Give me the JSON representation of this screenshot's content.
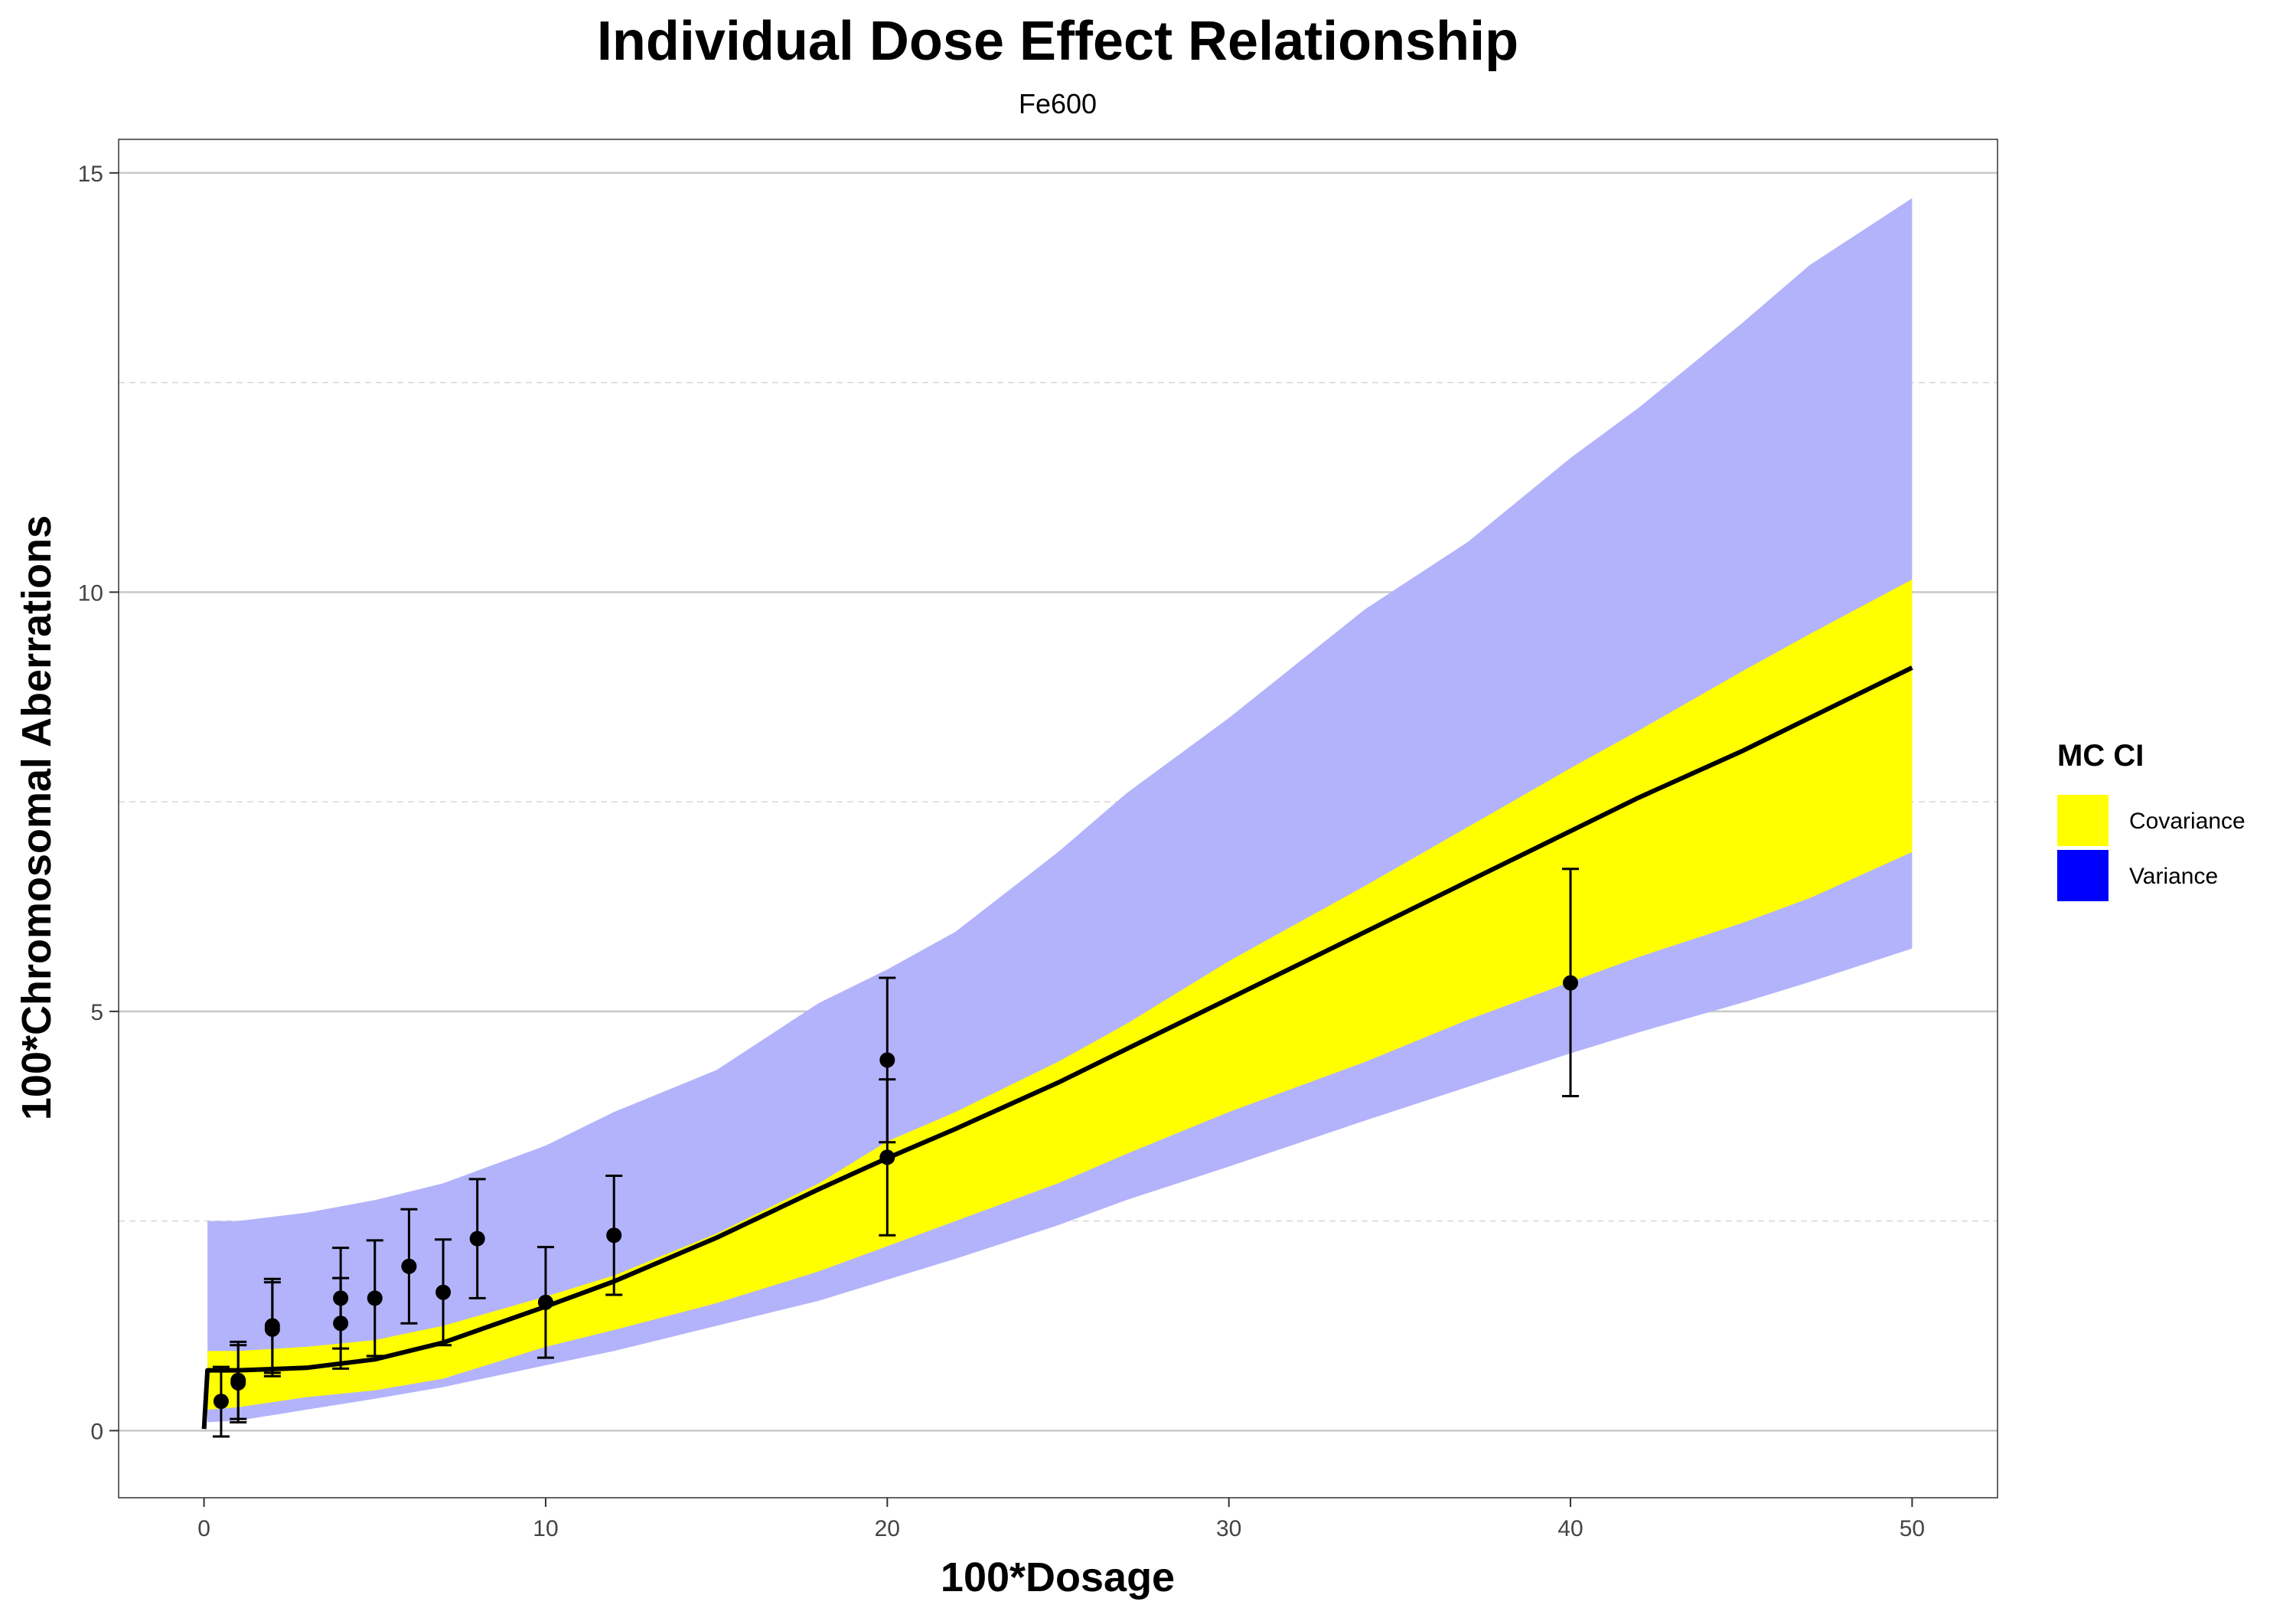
{
  "chart_data": {
    "type": "line",
    "title": "Individual Dose Effect Relationship",
    "subtitle": "Fe600",
    "xlabel": "100*Dosage",
    "ylabel": "100*Chromosomal Aberrations",
    "xlim": [
      -2.5,
      52.5
    ],
    "ylim": [
      -0.8,
      15.4
    ],
    "x_ticks": [
      0,
      10,
      20,
      30,
      40,
      50
    ],
    "y_ticks": [
      0,
      5,
      10,
      15
    ],
    "y_minor_gridlines": [
      2.5,
      7.5,
      12.5
    ],
    "x_tick_labels": [
      "0",
      "10",
      "20",
      "30",
      "40",
      "50"
    ],
    "y_tick_labels": [
      "0",
      "5",
      "10",
      "15"
    ],
    "grid": true,
    "legend": {
      "title": "MC CI",
      "position": "right",
      "items": [
        {
          "label": "Covariance",
          "color": "#ffff00"
        },
        {
          "label": "Variance",
          "color": "#0000ff"
        }
      ]
    },
    "colors": {
      "variance_fill": "#b3b3fb",
      "covariance_fill": "#ffff00",
      "fit_line": "#000000",
      "points": "#000000"
    },
    "series": [
      {
        "name": "Variance band",
        "type": "area",
        "x": [
          0.1,
          1,
          3,
          5,
          7,
          10,
          12,
          15,
          18,
          20,
          22,
          25,
          27,
          30,
          34,
          37,
          40,
          42,
          45,
          47,
          50
        ],
        "lower": [
          0.1,
          0.12,
          0.25,
          0.38,
          0.52,
          0.78,
          0.95,
          1.25,
          1.55,
          1.8,
          2.05,
          2.45,
          2.75,
          3.15,
          3.7,
          4.1,
          4.5,
          4.75,
          5.1,
          5.35,
          5.75
        ],
        "upper": [
          2.5,
          2.5,
          2.6,
          2.75,
          2.95,
          3.4,
          3.8,
          4.3,
          5.1,
          5.5,
          5.95,
          6.9,
          7.6,
          8.5,
          9.8,
          10.6,
          11.6,
          12.2,
          13.2,
          13.9,
          14.7
        ]
      },
      {
        "name": "Covariance band",
        "type": "area",
        "x": [
          0.1,
          1,
          3,
          5,
          7,
          10,
          12,
          15,
          18,
          20,
          22,
          25,
          27,
          30,
          34,
          37,
          40,
          42,
          45,
          47,
          50
        ],
        "lower": [
          0.25,
          0.28,
          0.4,
          0.48,
          0.62,
          1.0,
          1.2,
          1.52,
          1.9,
          2.2,
          2.5,
          2.95,
          3.3,
          3.8,
          4.4,
          4.9,
          5.35,
          5.65,
          6.05,
          6.35,
          6.9
        ],
        "upper": [
          0.95,
          0.95,
          1.0,
          1.08,
          1.25,
          1.6,
          1.85,
          2.35,
          2.95,
          3.45,
          3.8,
          4.4,
          4.85,
          5.6,
          6.5,
          7.2,
          7.9,
          8.35,
          9.05,
          9.5,
          10.15
        ]
      },
      {
        "name": "Fitted curve",
        "type": "line",
        "x": [
          0,
          0.1,
          1,
          3,
          5,
          7,
          10,
          12,
          15,
          18,
          20,
          22,
          25,
          27,
          30,
          34,
          37,
          40,
          42,
          45,
          47,
          50
        ],
        "y": [
          0.02,
          0.72,
          0.72,
          0.75,
          0.85,
          1.05,
          1.48,
          1.78,
          2.3,
          2.88,
          3.25,
          3.6,
          4.15,
          4.55,
          5.15,
          5.95,
          6.55,
          7.15,
          7.55,
          8.1,
          8.5,
          9.1
        ]
      },
      {
        "name": "Observed",
        "type": "scatter_errorbar",
        "points": [
          {
            "x": 0.5,
            "y": 0.35,
            "ymin": -0.07,
            "ymax": 0.76
          },
          {
            "x": 1,
            "y": 0.57,
            "ymin": 0.1,
            "ymax": 1.02
          },
          {
            "x": 1,
            "y": 0.6,
            "ymin": 0.14,
            "ymax": 1.06
          },
          {
            "x": 2,
            "y": 1.21,
            "ymin": 0.65,
            "ymax": 1.77
          },
          {
            "x": 2,
            "y": 1.25,
            "ymin": 0.69,
            "ymax": 1.81
          },
          {
            "x": 4,
            "y": 1.28,
            "ymin": 0.74,
            "ymax": 1.82
          },
          {
            "x": 4,
            "y": 1.58,
            "ymin": 0.98,
            "ymax": 2.18
          },
          {
            "x": 5,
            "y": 1.58,
            "ymin": 0.89,
            "ymax": 2.27
          },
          {
            "x": 6,
            "y": 1.96,
            "ymin": 1.28,
            "ymax": 2.64
          },
          {
            "x": 7,
            "y": 1.65,
            "ymin": 1.02,
            "ymax": 2.28
          },
          {
            "x": 8,
            "y": 2.29,
            "ymin": 1.58,
            "ymax": 3.0
          },
          {
            "x": 10,
            "y": 1.53,
            "ymin": 0.87,
            "ymax": 2.19
          },
          {
            "x": 12,
            "y": 2.33,
            "ymin": 1.62,
            "ymax": 3.04
          },
          {
            "x": 20,
            "y": 3.26,
            "ymin": 2.33,
            "ymax": 4.19
          },
          {
            "x": 20,
            "y": 4.42,
            "ymin": 3.44,
            "ymax": 5.4
          },
          {
            "x": 40,
            "y": 5.34,
            "ymin": 3.99,
            "ymax": 6.7
          }
        ]
      }
    ]
  }
}
